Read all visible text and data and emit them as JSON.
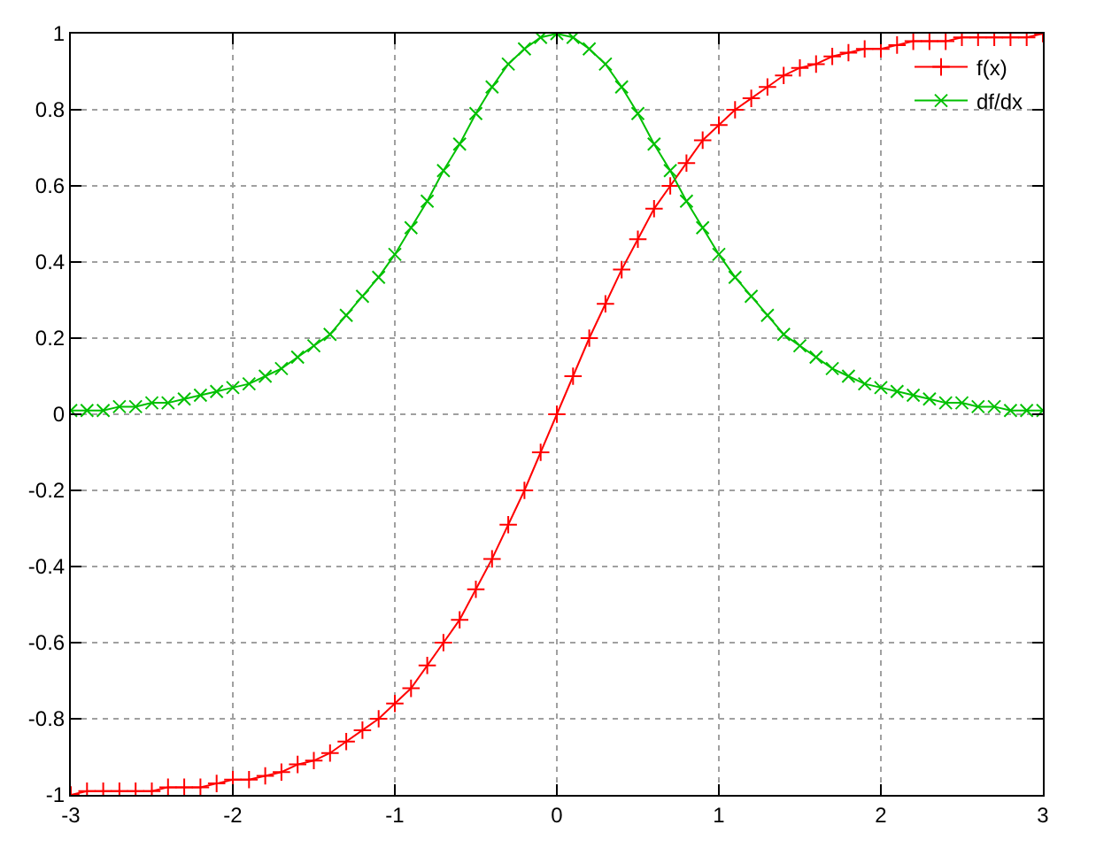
{
  "chart_data": {
    "type": "line",
    "x": [
      -3,
      -2.9,
      -2.8,
      -2.7,
      -2.6,
      -2.5,
      -2.4,
      -2.3,
      -2.2,
      -2.1,
      -2,
      -1.9,
      -1.8,
      -1.7,
      -1.6,
      -1.5,
      -1.4,
      -1.3,
      -1.2,
      -1.1,
      -1,
      -0.9,
      -0.8,
      -0.7,
      -0.6,
      -0.5,
      -0.4,
      -0.3,
      -0.2,
      -0.1,
      0,
      0.1,
      0.2,
      0.3,
      0.4,
      0.5,
      0.6,
      0.7,
      0.8,
      0.9,
      1,
      1.1,
      1.2,
      1.3,
      1.4,
      1.5,
      1.6,
      1.7,
      1.8,
      1.9,
      2,
      2.1,
      2.2,
      2.3,
      2.4,
      2.5,
      2.6,
      2.7,
      2.8,
      2.9,
      3
    ],
    "series": [
      {
        "name": "f(x)",
        "color": "#ff0000",
        "marker": "cross",
        "values": [
          -1,
          -0.99,
          -0.99,
          -0.99,
          -0.99,
          -0.99,
          -0.98,
          -0.98,
          -0.98,
          -0.97,
          -0.96,
          -0.96,
          -0.95,
          -0.94,
          -0.92,
          -0.91,
          -0.89,
          -0.86,
          -0.83,
          -0.8,
          -0.76,
          -0.72,
          -0.66,
          -0.6,
          -0.54,
          -0.46,
          -0.38,
          -0.29,
          -0.2,
          -0.1,
          0,
          0.1,
          0.2,
          0.29,
          0.38,
          0.46,
          0.54,
          0.6,
          0.66,
          0.72,
          0.76,
          0.8,
          0.83,
          0.86,
          0.89,
          0.91,
          0.92,
          0.94,
          0.95,
          0.96,
          0.96,
          0.97,
          0.98,
          0.98,
          0.98,
          0.99,
          0.99,
          0.99,
          0.99,
          0.99,
          1
        ]
      },
      {
        "name": "df/dx",
        "color": "#00c000",
        "marker": "x",
        "values": [
          0.01,
          0.01,
          0.01,
          0.02,
          0.02,
          0.03,
          0.03,
          0.04,
          0.05,
          0.06,
          0.07,
          0.08,
          0.1,
          0.12,
          0.15,
          0.18,
          0.21,
          0.26,
          0.31,
          0.36,
          0.42,
          0.49,
          0.56,
          0.64,
          0.71,
          0.79,
          0.86,
          0.92,
          0.96,
          0.99,
          1,
          0.99,
          0.96,
          0.92,
          0.86,
          0.79,
          0.71,
          0.64,
          0.56,
          0.49,
          0.42,
          0.36,
          0.31,
          0.26,
          0.21,
          0.18,
          0.15,
          0.12,
          0.1,
          0.08,
          0.07,
          0.06,
          0.05,
          0.04,
          0.03,
          0.03,
          0.02,
          0.02,
          0.01,
          0.01,
          0.01
        ]
      }
    ],
    "xlim": [
      -3,
      3
    ],
    "xticks": [
      -3,
      -2,
      -1,
      0,
      1,
      2,
      3
    ],
    "ylim": [
      -1,
      1
    ],
    "yticks": [
      -1,
      -0.8,
      -0.6,
      -0.4,
      -0.2,
      0,
      0.2,
      0.4,
      0.6,
      0.8,
      1
    ],
    "grid": true,
    "legend": "top right",
    "line_style": "solid"
  }
}
